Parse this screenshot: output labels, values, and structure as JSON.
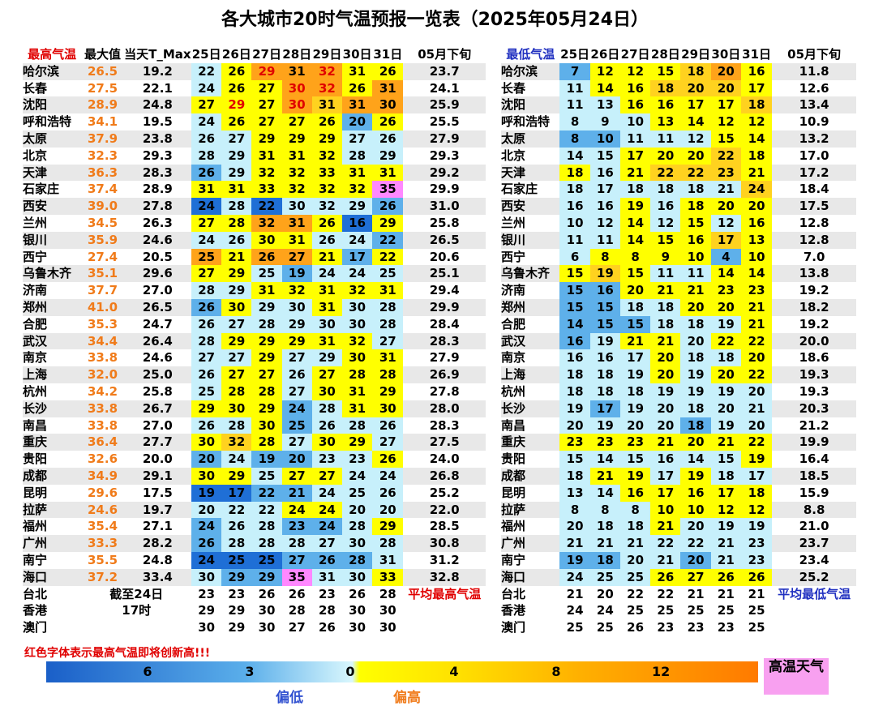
{
  "title": "各大城市20时气温预报一览表（2025年05月24日）",
  "left": {
    "header": [
      "最高气温",
      "最大值",
      "当天T_Max",
      "25日",
      "26日",
      "27日",
      "28日",
      "29日",
      "30日",
      "31日",
      "05月下旬"
    ],
    "rows": [
      {
        "city": "哈尔滨",
        "max": "26.5",
        "today": "19.2",
        "days": [
          22,
          26,
          29,
          31,
          32,
          31,
          26
        ],
        "avg": "23.7",
        "colors": "lyOoOyy"
      },
      {
        "city": "长春",
        "max": "27.5",
        "today": "22.1",
        "days": [
          24,
          26,
          27,
          30,
          32,
          26,
          31
        ],
        "avg": "24.1",
        "colors": "lyyOOyo"
      },
      {
        "city": "沈阳",
        "max": "28.9",
        "today": "24.8",
        "days": [
          27,
          29,
          27,
          30,
          31,
          31,
          30
        ],
        "avg": "25.9",
        "colors": "yYyOgoo"
      },
      {
        "city": "呼和浩特",
        "max": "34.1",
        "today": "19.5",
        "days": [
          24,
          26,
          27,
          27,
          26,
          20,
          26
        ],
        "avg": "25.5",
        "colors": "lyyyyby"
      },
      {
        "city": "太原",
        "max": "37.9",
        "today": "23.8",
        "days": [
          26,
          27,
          29,
          29,
          29,
          27,
          26
        ],
        "avg": "27.9",
        "colors": "llyyyll"
      },
      {
        "city": "北京",
        "max": "32.3",
        "today": "29.3",
        "days": [
          28,
          29,
          31,
          31,
          32,
          28,
          29
        ],
        "avg": "29.3",
        "colors": "llyyyll"
      },
      {
        "city": "天津",
        "max": "36.3",
        "today": "28.3",
        "days": [
          26,
          29,
          32,
          32,
          33,
          31,
          31
        ],
        "avg": "29.2",
        "colors": "blyyyyy"
      },
      {
        "city": "石家庄",
        "max": "37.4",
        "today": "28.9",
        "days": [
          31,
          31,
          33,
          32,
          32,
          32,
          35
        ],
        "avg": "29.9",
        "colors": "yyyyyyp"
      },
      {
        "city": "西安",
        "max": "39.0",
        "today": "27.8",
        "days": [
          24,
          28,
          22,
          30,
          32,
          29,
          26
        ],
        "avg": "31.0",
        "colors": "dldlllb"
      },
      {
        "city": "兰州",
        "max": "34.5",
        "today": "26.3",
        "days": [
          27,
          28,
          32,
          31,
          26,
          16,
          29
        ],
        "avg": "25.8",
        "colors": "yyooydy"
      },
      {
        "city": "银川",
        "max": "35.9",
        "today": "24.6",
        "days": [
          24,
          26,
          30,
          31,
          26,
          24,
          22
        ],
        "avg": "26.5",
        "colors": "llyyllb"
      },
      {
        "city": "西宁",
        "max": "27.4",
        "today": "20.5",
        "days": [
          25,
          21,
          26,
          27,
          21,
          17,
          22
        ],
        "avg": "20.6",
        "colors": "oyooyby"
      },
      {
        "city": "乌鲁木齐",
        "max": "35.1",
        "today": "29.6",
        "days": [
          27,
          29,
          25,
          19,
          24,
          24,
          25
        ],
        "avg": "25.1",
        "colors": "yylblll"
      },
      {
        "city": "济南",
        "max": "37.7",
        "today": "27.0",
        "days": [
          28,
          29,
          31,
          32,
          31,
          32,
          31
        ],
        "avg": "29.4",
        "colors": "llyyyyy"
      },
      {
        "city": "郑州",
        "max": "41.0",
        "today": "26.5",
        "days": [
          26,
          30,
          29,
          30,
          31,
          30,
          28
        ],
        "avg": "29.9",
        "colors": "byllyll"
      },
      {
        "city": "合肥",
        "max": "35.3",
        "today": "24.7",
        "days": [
          26,
          27,
          28,
          29,
          30,
          30,
          28
        ],
        "avg": "28.4",
        "colors": "lllllll"
      },
      {
        "city": "武汉",
        "max": "34.4",
        "today": "26.4",
        "days": [
          28,
          29,
          29,
          29,
          31,
          32,
          27
        ],
        "avg": "28.3",
        "colors": "lyyyyyl"
      },
      {
        "city": "南京",
        "max": "33.8",
        "today": "24.6",
        "days": [
          27,
          27,
          29,
          27,
          29,
          30,
          31
        ],
        "avg": "27.9",
        "colors": "llyllyy"
      },
      {
        "city": "上海",
        "max": "32.0",
        "today": "25.0",
        "days": [
          26,
          27,
          27,
          26,
          27,
          28,
          28
        ],
        "avg": "26.9",
        "colors": "lyylyyy"
      },
      {
        "city": "杭州",
        "max": "34.2",
        "today": "25.8",
        "days": [
          25,
          28,
          28,
          27,
          30,
          31,
          29
        ],
        "avg": "27.8",
        "colors": "lyylyyy"
      },
      {
        "city": "长沙",
        "max": "33.8",
        "today": "26.7",
        "days": [
          29,
          30,
          29,
          24,
          28,
          31,
          30
        ],
        "avg": "28.0",
        "colors": "yyyblyy"
      },
      {
        "city": "南昌",
        "max": "33.8",
        "today": "27.0",
        "days": [
          26,
          28,
          30,
          25,
          26,
          28,
          26
        ],
        "avg": "28.3",
        "colors": "llyblll"
      },
      {
        "city": "重庆",
        "max": "36.4",
        "today": "27.7",
        "days": [
          30,
          32,
          28,
          27,
          30,
          29,
          27
        ],
        "avg": "27.5",
        "colors": "ygylyyl"
      },
      {
        "city": "贵阳",
        "max": "32.6",
        "today": "20.0",
        "days": [
          20,
          24,
          19,
          20,
          23,
          23,
          26
        ],
        "avg": "24.0",
        "colors": "blbblly"
      },
      {
        "city": "成都",
        "max": "34.9",
        "today": "29.1",
        "days": [
          30,
          29,
          25,
          27,
          27,
          24,
          24
        ],
        "avg": "26.8",
        "colors": "yylyyll"
      },
      {
        "city": "昆明",
        "max": "29.6",
        "today": "17.5",
        "days": [
          19,
          17,
          22,
          21,
          24,
          25,
          26
        ],
        "avg": "25.2",
        "colors": "ddbblll"
      },
      {
        "city": "拉萨",
        "max": "24.6",
        "today": "19.7",
        "days": [
          20,
          22,
          22,
          24,
          24,
          20,
          20
        ],
        "avg": "22.0",
        "colors": "lllyyll"
      },
      {
        "city": "福州",
        "max": "35.4",
        "today": "27.1",
        "days": [
          24,
          26,
          28,
          23,
          24,
          28,
          29
        ],
        "avg": "28.5",
        "colors": "bllbbly"
      },
      {
        "city": "广州",
        "max": "33.3",
        "today": "28.2",
        "days": [
          26,
          28,
          28,
          28,
          27,
          30,
          28
        ],
        "avg": "30.8",
        "colors": "bllllll"
      },
      {
        "city": "南宁",
        "max": "35.5",
        "today": "24.8",
        "days": [
          24,
          25,
          25,
          27,
          26,
          28,
          31
        ],
        "avg": "31.2",
        "colors": "dddbbbl"
      },
      {
        "city": "海口",
        "max": "37.2",
        "today": "33.4",
        "days": [
          30,
          29,
          29,
          35,
          31,
          30,
          33
        ],
        "avg": "32.8",
        "colors": "lbbplly"
      },
      {
        "city": "台北",
        "note": "截至24日",
        "days": [
          23,
          23,
          26,
          26,
          23,
          26,
          28
        ],
        "avg": "平均最高气温",
        "colors": "wwwwwww"
      },
      {
        "city": "香港",
        "note": "17时",
        "days": [
          29,
          29,
          30,
          28,
          28,
          30,
          30
        ],
        "colors": "wwwwwww"
      },
      {
        "city": "澳门",
        "days": [
          30,
          29,
          30,
          27,
          26,
          30,
          30
        ],
        "colors": "wwwwwww"
      }
    ]
  },
  "right": {
    "header": [
      "最低气温",
      "25日",
      "26日",
      "27日",
      "28日",
      "29日",
      "30日",
      "31日",
      "05月下旬"
    ],
    "rows": [
      {
        "city": "哈尔滨",
        "days": [
          7,
          12,
          12,
          15,
          18,
          20,
          16
        ],
        "avg": "11.8",
        "colors": "byyygoy"
      },
      {
        "city": "长春",
        "days": [
          11,
          14,
          16,
          18,
          20,
          20,
          17
        ],
        "avg": "12.6",
        "colors": "lyygggy"
      },
      {
        "city": "沈阳",
        "days": [
          11,
          13,
          16,
          16,
          17,
          17,
          18
        ],
        "avg": "13.4",
        "colors": "llyyyyg"
      },
      {
        "city": "呼和浩特",
        "days": [
          8,
          9,
          10,
          13,
          14,
          12,
          12
        ],
        "avg": "10.9",
        "colors": "lllyyyy"
      },
      {
        "city": "太原",
        "days": [
          8,
          10,
          11,
          11,
          12,
          15,
          14
        ],
        "avg": "13.2",
        "colors": "bblllyy"
      },
      {
        "city": "北京",
        "days": [
          14,
          15,
          17,
          20,
          20,
          22,
          18
        ],
        "avg": "17.0",
        "colors": "llyyygy"
      },
      {
        "city": "天津",
        "days": [
          18,
          16,
          21,
          22,
          22,
          23,
          21
        ],
        "avg": "17.2",
        "colors": "ylygggy"
      },
      {
        "city": "石家庄",
        "days": [
          18,
          17,
          18,
          18,
          18,
          21,
          24
        ],
        "avg": "18.4",
        "colors": "llllllg"
      },
      {
        "city": "西安",
        "days": [
          16,
          16,
          19,
          16,
          18,
          20,
          20
        ],
        "avg": "17.5",
        "colors": "llylyyy"
      },
      {
        "city": "兰州",
        "days": [
          10,
          12,
          14,
          12,
          15,
          12,
          16
        ],
        "avg": "12.8",
        "colors": "llylyly"
      },
      {
        "city": "银川",
        "days": [
          11,
          11,
          14,
          15,
          16,
          17,
          13
        ],
        "avg": "12.8",
        "colors": "llyyygy"
      },
      {
        "city": "西宁",
        "days": [
          6,
          8,
          8,
          9,
          10,
          4,
          10
        ],
        "avg": "7.0",
        "colors": "lyyyyby"
      },
      {
        "city": "乌鲁木齐",
        "days": [
          15,
          19,
          15,
          11,
          11,
          14,
          14
        ],
        "avg": "13.8",
        "colors": "ygyllyy"
      },
      {
        "city": "济南",
        "days": [
          15,
          16,
          20,
          21,
          21,
          23,
          23
        ],
        "avg": "19.2",
        "colors": "bbyyyyy"
      },
      {
        "city": "郑州",
        "days": [
          15,
          15,
          18,
          18,
          20,
          20,
          21
        ],
        "avg": "18.2",
        "colors": "bbllyyy"
      },
      {
        "city": "合肥",
        "days": [
          14,
          15,
          15,
          18,
          18,
          19,
          21
        ],
        "avg": "19.2",
        "colors": "bbbllly"
      },
      {
        "city": "武汉",
        "days": [
          16,
          19,
          21,
          21,
          20,
          22,
          22
        ],
        "avg": "20.0",
        "colors": "blyylyy"
      },
      {
        "city": "南京",
        "days": [
          16,
          16,
          17,
          20,
          18,
          18,
          20
        ],
        "avg": "18.6",
        "colors": "lllylly"
      },
      {
        "city": "上海",
        "days": [
          18,
          18,
          19,
          20,
          19,
          20,
          22
        ],
        "avg": "19.3",
        "colors": "lllylyy"
      },
      {
        "city": "杭州",
        "days": [
          18,
          18,
          18,
          19,
          19,
          19,
          20
        ],
        "avg": "19.3",
        "colors": "lllllll"
      },
      {
        "city": "长沙",
        "days": [
          19,
          17,
          19,
          20,
          18,
          20,
          21
        ],
        "avg": "20.3",
        "colors": "lblllll"
      },
      {
        "city": "南昌",
        "days": [
          20,
          19,
          20,
          20,
          18,
          19,
          20
        ],
        "avg": "21.2",
        "colors": "llllbll"
      },
      {
        "city": "重庆",
        "days": [
          23,
          23,
          23,
          21,
          20,
          21,
          22
        ],
        "avg": "19.9",
        "colors": "yyyyyyy"
      },
      {
        "city": "贵阳",
        "days": [
          15,
          14,
          15,
          16,
          14,
          15,
          19
        ],
        "avg": "16.4",
        "colors": "lllllly"
      },
      {
        "city": "成都",
        "days": [
          18,
          21,
          19,
          17,
          19,
          18,
          17
        ],
        "avg": "18.5",
        "colors": "lyylyll"
      },
      {
        "city": "昆明",
        "days": [
          13,
          14,
          16,
          17,
          16,
          17,
          18
        ],
        "avg": "15.9",
        "colors": "llyyyyy"
      },
      {
        "city": "拉萨",
        "days": [
          8,
          8,
          8,
          10,
          10,
          12,
          12
        ],
        "avg": "8.8",
        "colors": "lllyyyy"
      },
      {
        "city": "福州",
        "days": [
          20,
          18,
          18,
          21,
          20,
          19,
          19
        ],
        "avg": "21.0",
        "colors": "lllylll"
      },
      {
        "city": "广州",
        "days": [
          21,
          21,
          21,
          22,
          22,
          21,
          23
        ],
        "avg": "23.7",
        "colors": "lllllll"
      },
      {
        "city": "南宁",
        "days": [
          19,
          18,
          20,
          21,
          20,
          21,
          23
        ],
        "avg": "23.4",
        "colors": "bbllbll"
      },
      {
        "city": "海口",
        "days": [
          24,
          25,
          25,
          26,
          27,
          26,
          26
        ],
        "avg": "25.2",
        "colors": "lllyyyy"
      },
      {
        "city": "台北",
        "days": [
          21,
          20,
          22,
          22,
          21,
          21,
          21
        ],
        "avg": "平均最低气温",
        "colors": "wwwwwww"
      },
      {
        "city": "香港",
        "days": [
          24,
          24,
          25,
          25,
          25,
          25,
          25
        ],
        "colors": "wwwwwww"
      },
      {
        "city": "澳门",
        "days": [
          25,
          25,
          26,
          23,
          23,
          23,
          25
        ],
        "colors": "wwwwwww"
      }
    ]
  },
  "note": "红色字体表示最高气温即将创新高!!!",
  "legend": {
    "ticks": [
      "6",
      "3",
      "0",
      "4",
      "8",
      "12"
    ],
    "hot": "高温天气",
    "low": "偏低",
    "high": "偏高"
  }
}
